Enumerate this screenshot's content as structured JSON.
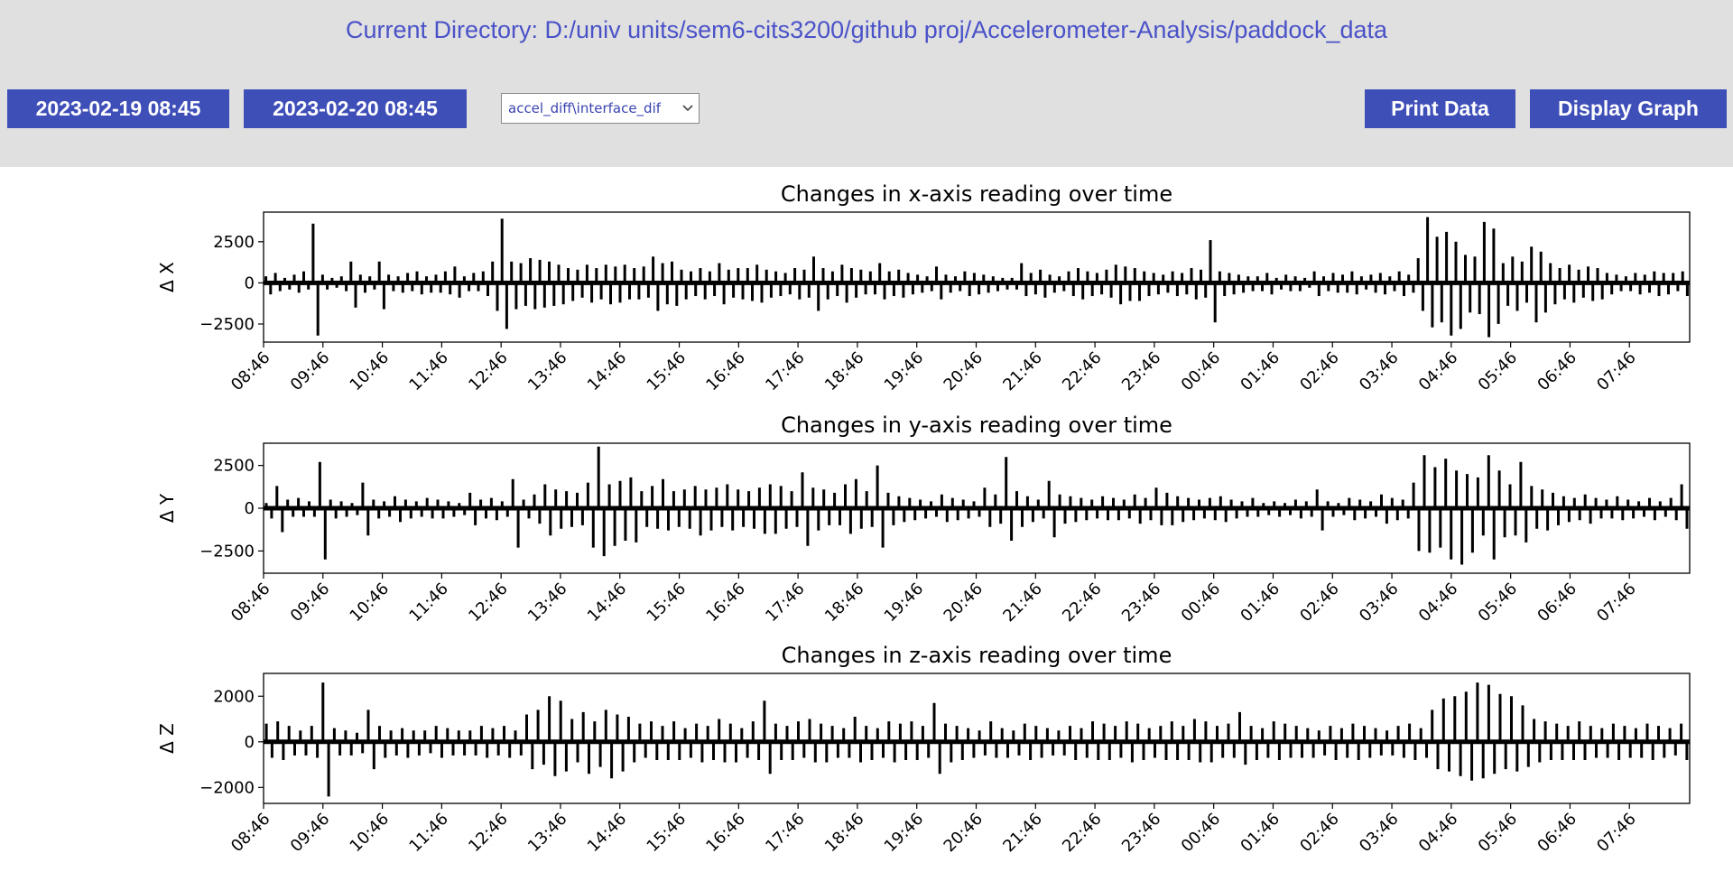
{
  "header": {
    "current_directory": "Current Directory: D:/univ units/sem6-cits3200/github proj/Accelerometer-Analysis/paddock_data"
  },
  "controls": {
    "start_datetime": "2023-02-19 08:45",
    "end_datetime": "2023-02-20 08:45",
    "file_select_value": "accel_diff\\interface_dif",
    "print_label": "Print Data",
    "graph_label": "Display Graph"
  },
  "colors": {
    "toolbar_bg": "#e0e0e0",
    "button_bg": "#3f4fb8",
    "accent_text": "#4a52c8",
    "line": "#000000"
  },
  "icons": {
    "select_caret": "chevron-down-icon"
  },
  "chart_data": [
    {
      "type": "line",
      "title": "Changes in x-axis reading over time",
      "ylabel": "Δ X",
      "xlabel": "",
      "x_ticks": [
        "08:46",
        "09:46",
        "10:46",
        "11:46",
        "12:46",
        "13:46",
        "14:46",
        "15:46",
        "16:46",
        "17:46",
        "18:46",
        "19:46",
        "20:46",
        "21:46",
        "22:46",
        "23:46",
        "00:46",
        "01:46",
        "02:46",
        "03:46",
        "04:46",
        "05:46",
        "06:46",
        "07:46"
      ],
      "x_range": [
        "2023-02-19 08:46",
        "2023-02-20 08:46"
      ],
      "y_ticks": [
        2500,
        0,
        -2500
      ],
      "ylim": [
        -3600,
        4300
      ],
      "series": [
        {
          "values": [
            400,
            -700,
            600,
            -500,
            300,
            -400,
            500,
            -600,
            700,
            -400,
            3600,
            -3200,
            500,
            -400,
            300,
            -300,
            400,
            -500,
            1300,
            -1500,
            500,
            -600,
            400,
            -400,
            1300,
            -1600,
            500,
            -500,
            400,
            -600,
            600,
            -500,
            700,
            -700,
            400,
            -600,
            500,
            -600,
            700,
            -700,
            1000,
            -900,
            400,
            -500,
            600,
            -500,
            700,
            -800,
            1300,
            -1700,
            3900,
            -2800,
            1300,
            -1600,
            1200,
            -1400,
            1500,
            -1600,
            1400,
            -1500,
            1300,
            -1400,
            1100,
            -1300,
            900,
            -1100,
            800,
            -900,
            1100,
            -1200,
            900,
            -1000,
            1100,
            -1300,
            1000,
            -1200,
            1100,
            -1000,
            900,
            -1000,
            1000,
            -900,
            1600,
            -1700,
            1200,
            -1300,
            1300,
            -1400,
            800,
            -1000,
            700,
            -800,
            900,
            -1000,
            700,
            -800,
            1200,
            -1300,
            800,
            -900,
            900,
            -1000,
            900,
            -1100,
            1100,
            -1200,
            800,
            -900,
            700,
            -800,
            600,
            -700,
            900,
            -1000,
            800,
            -900,
            1600,
            -1700,
            900,
            -1000,
            700,
            -800,
            1100,
            -1200,
            900,
            -900,
            800,
            -700,
            700,
            -700,
            1200,
            -1000,
            700,
            -800,
            800,
            -900,
            600,
            -700,
            500,
            -600,
            400,
            -500,
            1000,
            -1000,
            500,
            -600,
            400,
            -500,
            700,
            -800,
            600,
            -700,
            500,
            -600,
            400,
            -500,
            300,
            -400,
            300,
            -400,
            1200,
            -800,
            600,
            -700,
            800,
            -900,
            500,
            -600,
            400,
            -500,
            700,
            -800,
            900,
            -1000,
            700,
            -800,
            600,
            -700,
            800,
            -900,
            1100,
            -1300,
            1000,
            -1100,
            900,
            -1100,
            700,
            -800,
            600,
            -700,
            500,
            -600,
            700,
            -800,
            600,
            -700,
            900,
            -1000,
            800,
            -900,
            2600,
            -2400,
            700,
            -800,
            600,
            -700,
            500,
            -600,
            400,
            -500,
            400,
            -500,
            600,
            -700,
            300,
            -400,
            500,
            -500,
            400,
            -500,
            300,
            -300,
            700,
            -800,
            400,
            -500,
            600,
            -600,
            500,
            -600,
            700,
            -700,
            400,
            -400,
            500,
            -600,
            600,
            -700,
            400,
            -500,
            700,
            -800,
            500,
            -600,
            1500,
            -1700,
            4000,
            -2700,
            2800,
            -2400,
            3100,
            -3200,
            2500,
            -2800,
            1700,
            -1800,
            1600,
            -1900,
            3700,
            -3300,
            3300,
            -2500,
            1200,
            -1400,
            1600,
            -1700,
            1300,
            -1200,
            2200,
            -2400,
            1900,
            -1800,
            1200,
            -1300,
            900,
            -1000,
            1100,
            -1200,
            800,
            -900,
            1000,
            -1100,
            900,
            -1000,
            600,
            -700,
            500,
            -500,
            400,
            -500,
            600,
            -700,
            500,
            -600,
            700,
            -800,
            600,
            -700,
            600,
            -500,
            700,
            -800
          ]
        }
      ]
    },
    {
      "type": "line",
      "title": "Changes in y-axis reading over time",
      "ylabel": "Δ Y",
      "xlabel": "",
      "x_ticks": [
        "08:46",
        "09:46",
        "10:46",
        "11:46",
        "12:46",
        "13:46",
        "14:46",
        "15:46",
        "16:46",
        "17:46",
        "18:46",
        "19:46",
        "20:46",
        "21:46",
        "22:46",
        "23:46",
        "00:46",
        "01:46",
        "02:46",
        "03:46",
        "04:46",
        "05:46",
        "06:46",
        "07:46"
      ],
      "x_range": [
        "2023-02-19 08:46",
        "2023-02-20 08:46"
      ],
      "y_ticks": [
        2500,
        0,
        -2500
      ],
      "ylim": [
        -3800,
        3800
      ],
      "series": [
        {
          "values": [
            300,
            -600,
            1300,
            -1400,
            500,
            -500,
            600,
            -500,
            400,
            -500,
            2700,
            -3000,
            500,
            -600,
            400,
            -500,
            300,
            -400,
            1500,
            -1600,
            500,
            -600,
            400,
            -500,
            700,
            -800,
            500,
            -600,
            400,
            -500,
            600,
            -600,
            500,
            -600,
            400,
            -500,
            300,
            -400,
            900,
            -1000,
            500,
            -600,
            600,
            -700,
            400,
            -500,
            1700,
            -2300,
            500,
            -600,
            800,
            -900,
            1400,
            -1600,
            1100,
            -1200,
            1000,
            -1100,
            900,
            -1000,
            1500,
            -2300,
            3600,
            -2800,
            1400,
            -2200,
            1600,
            -1900,
            1800,
            -2000,
            1000,
            -1100,
            1300,
            -1200,
            1700,
            -1300,
            1000,
            -1100,
            1100,
            -1200,
            1300,
            -1600,
            1100,
            -1300,
            1200,
            -1100,
            1400,
            -1300,
            1100,
            -1100,
            1000,
            -1200,
            1200,
            -1500,
            1400,
            -1500,
            1300,
            -1200,
            1000,
            -1100,
            2100,
            -2200,
            1200,
            -1300,
            1100,
            -1000,
            900,
            -1000,
            1400,
            -1500,
            1700,
            -1200,
            1000,
            -1100,
            2500,
            -2300,
            900,
            -1000,
            700,
            -800,
            600,
            -700,
            500,
            -600,
            400,
            -500,
            800,
            -800,
            600,
            -700,
            500,
            -600,
            400,
            -500,
            1200,
            -1100,
            800,
            -900,
            3000,
            -1900,
            1000,
            -1100,
            700,
            -800,
            500,
            -600,
            1600,
            -1700,
            800,
            -900,
            700,
            -800,
            600,
            -700,
            500,
            -600,
            700,
            -700,
            600,
            -700,
            500,
            -600,
            800,
            -900,
            600,
            -700,
            1200,
            -1000,
            900,
            -1000,
            700,
            -800,
            600,
            -700,
            500,
            -600,
            600,
            -700,
            700,
            -800,
            500,
            -600,
            400,
            -500,
            600,
            -500,
            300,
            -400,
            400,
            -500,
            300,
            -400,
            500,
            -600,
            400,
            -500,
            1100,
            -1300,
            400,
            -500,
            300,
            -400,
            600,
            -700,
            500,
            -600,
            400,
            -500,
            800,
            -900,
            600,
            -700,
            500,
            -600,
            1500,
            -2500,
            3100,
            -2600,
            2400,
            -2300,
            2900,
            -3000,
            2200,
            -3300,
            2000,
            -2600,
            1800,
            -1600,
            3100,
            -3000,
            2200,
            -1700,
            1400,
            -1600,
            2700,
            -2000,
            1300,
            -1200,
            1100,
            -1300,
            900,
            -1000,
            700,
            -800,
            600,
            -700,
            800,
            -900,
            600,
            -600,
            500,
            -600,
            700,
            -700,
            500,
            -600,
            400,
            -500,
            600,
            -700,
            400,
            -500,
            600,
            -700,
            1400,
            -1200
          ]
        }
      ]
    },
    {
      "type": "line",
      "title": "Changes in z-axis reading over time",
      "ylabel": "Δ Z",
      "xlabel": "",
      "x_ticks": [
        "08:46",
        "09:46",
        "10:46",
        "11:46",
        "12:46",
        "13:46",
        "14:46",
        "15:46",
        "16:46",
        "17:46",
        "18:46",
        "19:46",
        "20:46",
        "21:46",
        "22:46",
        "23:46",
        "00:46",
        "01:46",
        "02:46",
        "03:46",
        "04:46",
        "05:46",
        "06:46",
        "07:46"
      ],
      "x_range": [
        "2023-02-19 08:46",
        "2023-02-20 08:46"
      ],
      "y_ticks": [
        2000,
        0,
        -2000
      ],
      "ylim": [
        -2700,
        3000
      ],
      "series": [
        {
          "values": [
            800,
            -700,
            900,
            -800,
            700,
            -600,
            500,
            -600,
            700,
            -700,
            2600,
            -2400,
            600,
            -600,
            500,
            -600,
            400,
            -500,
            1400,
            -1200,
            700,
            -700,
            500,
            -600,
            600,
            -700,
            500,
            -600,
            500,
            -500,
            700,
            -700,
            600,
            -600,
            500,
            -600,
            500,
            -600,
            700,
            -700,
            600,
            -600,
            700,
            -700,
            500,
            -600,
            1200,
            -1200,
            1400,
            -1000,
            2000,
            -1500,
            1800,
            -1300,
            1000,
            -900,
            1300,
            -1400,
            900,
            -1100,
            1400,
            -1600,
            1200,
            -1300,
            1100,
            -900,
            800,
            -700,
            900,
            -800,
            700,
            -800,
            900,
            -800,
            600,
            -700,
            800,
            -900,
            700,
            -800,
            1000,
            -900,
            800,
            -900,
            600,
            -700,
            900,
            -800,
            1800,
            -1400,
            800,
            -800,
            700,
            -800,
            900,
            -700,
            1000,
            -900,
            800,
            -900,
            700,
            -700,
            600,
            -700,
            1100,
            -900,
            700,
            -800,
            600,
            -700,
            900,
            -900,
            800,
            -800,
            900,
            -800,
            700,
            -700,
            1700,
            -1400,
            800,
            -900,
            700,
            -800,
            600,
            -700,
            500,
            -600,
            900,
            -700,
            600,
            -700,
            500,
            -600,
            800,
            -800,
            700,
            -700,
            600,
            -600,
            500,
            -600,
            700,
            -800,
            600,
            -700,
            900,
            -800,
            800,
            -800,
            700,
            -700,
            900,
            -900,
            800,
            -800,
            600,
            -700,
            700,
            -800,
            900,
            -800,
            700,
            -800,
            1000,
            -900,
            900,
            -900,
            700,
            -700,
            800,
            -700,
            1300,
            -1000,
            700,
            -800,
            600,
            -700,
            900,
            -800,
            800,
            -700,
            700,
            -700,
            600,
            -700,
            500,
            -600,
            700,
            -800,
            600,
            -700,
            800,
            -800,
            700,
            -700,
            600,
            -600,
            500,
            -600,
            700,
            -700,
            800,
            -800,
            600,
            -700,
            1400,
            -1200,
            1900,
            -1300,
            2000,
            -1500,
            2200,
            -1700,
            2600,
            -1600,
            2500,
            -1400,
            2100,
            -1200,
            2000,
            -1300,
            1600,
            -1100,
            1000,
            -900,
            900,
            -800,
            800,
            -800,
            700,
            -800,
            900,
            -800,
            700,
            -700,
            600,
            -700,
            800,
            -800,
            700,
            -700,
            600,
            -700,
            800,
            -800,
            700,
            -700,
            600,
            -600,
            800,
            -800
          ]
        }
      ]
    }
  ]
}
